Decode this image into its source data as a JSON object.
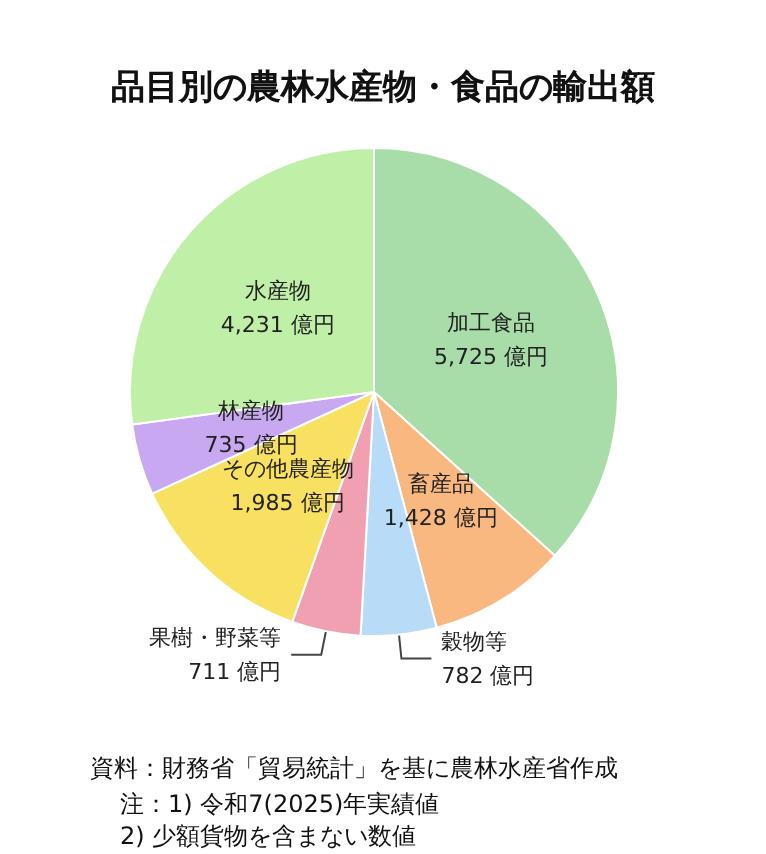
{
  "chart_data": {
    "type": "pie",
    "title": "品目別の農林水産物・食品の輸出額",
    "categories": [
      "加工食品",
      "畜産品",
      "穀物等",
      "果樹・野菜等",
      "その他農産物",
      "林産物",
      "水産物"
    ],
    "values": [
      5725,
      1428,
      782,
      711,
      1985,
      735,
      4231
    ],
    "value_labels": [
      "5,725 億円",
      "1,428 億円",
      "782 億円",
      "711 億円",
      "1,985 億円",
      "735 億円",
      "4,231 億円"
    ],
    "colors": [
      "#a8dca8",
      "#f8b880",
      "#b8dcf8",
      "#f0a0b0",
      "#f8e060",
      "#c8a8f0",
      "#c0f0a8"
    ],
    "annotations": [
      "資料：財務省「貿易統計」を基に農林水産省作成",
      "注：1) 令和7(2025)年実績値\n2) 少額貨物を含まない数値"
    ],
    "legend": false
  }
}
